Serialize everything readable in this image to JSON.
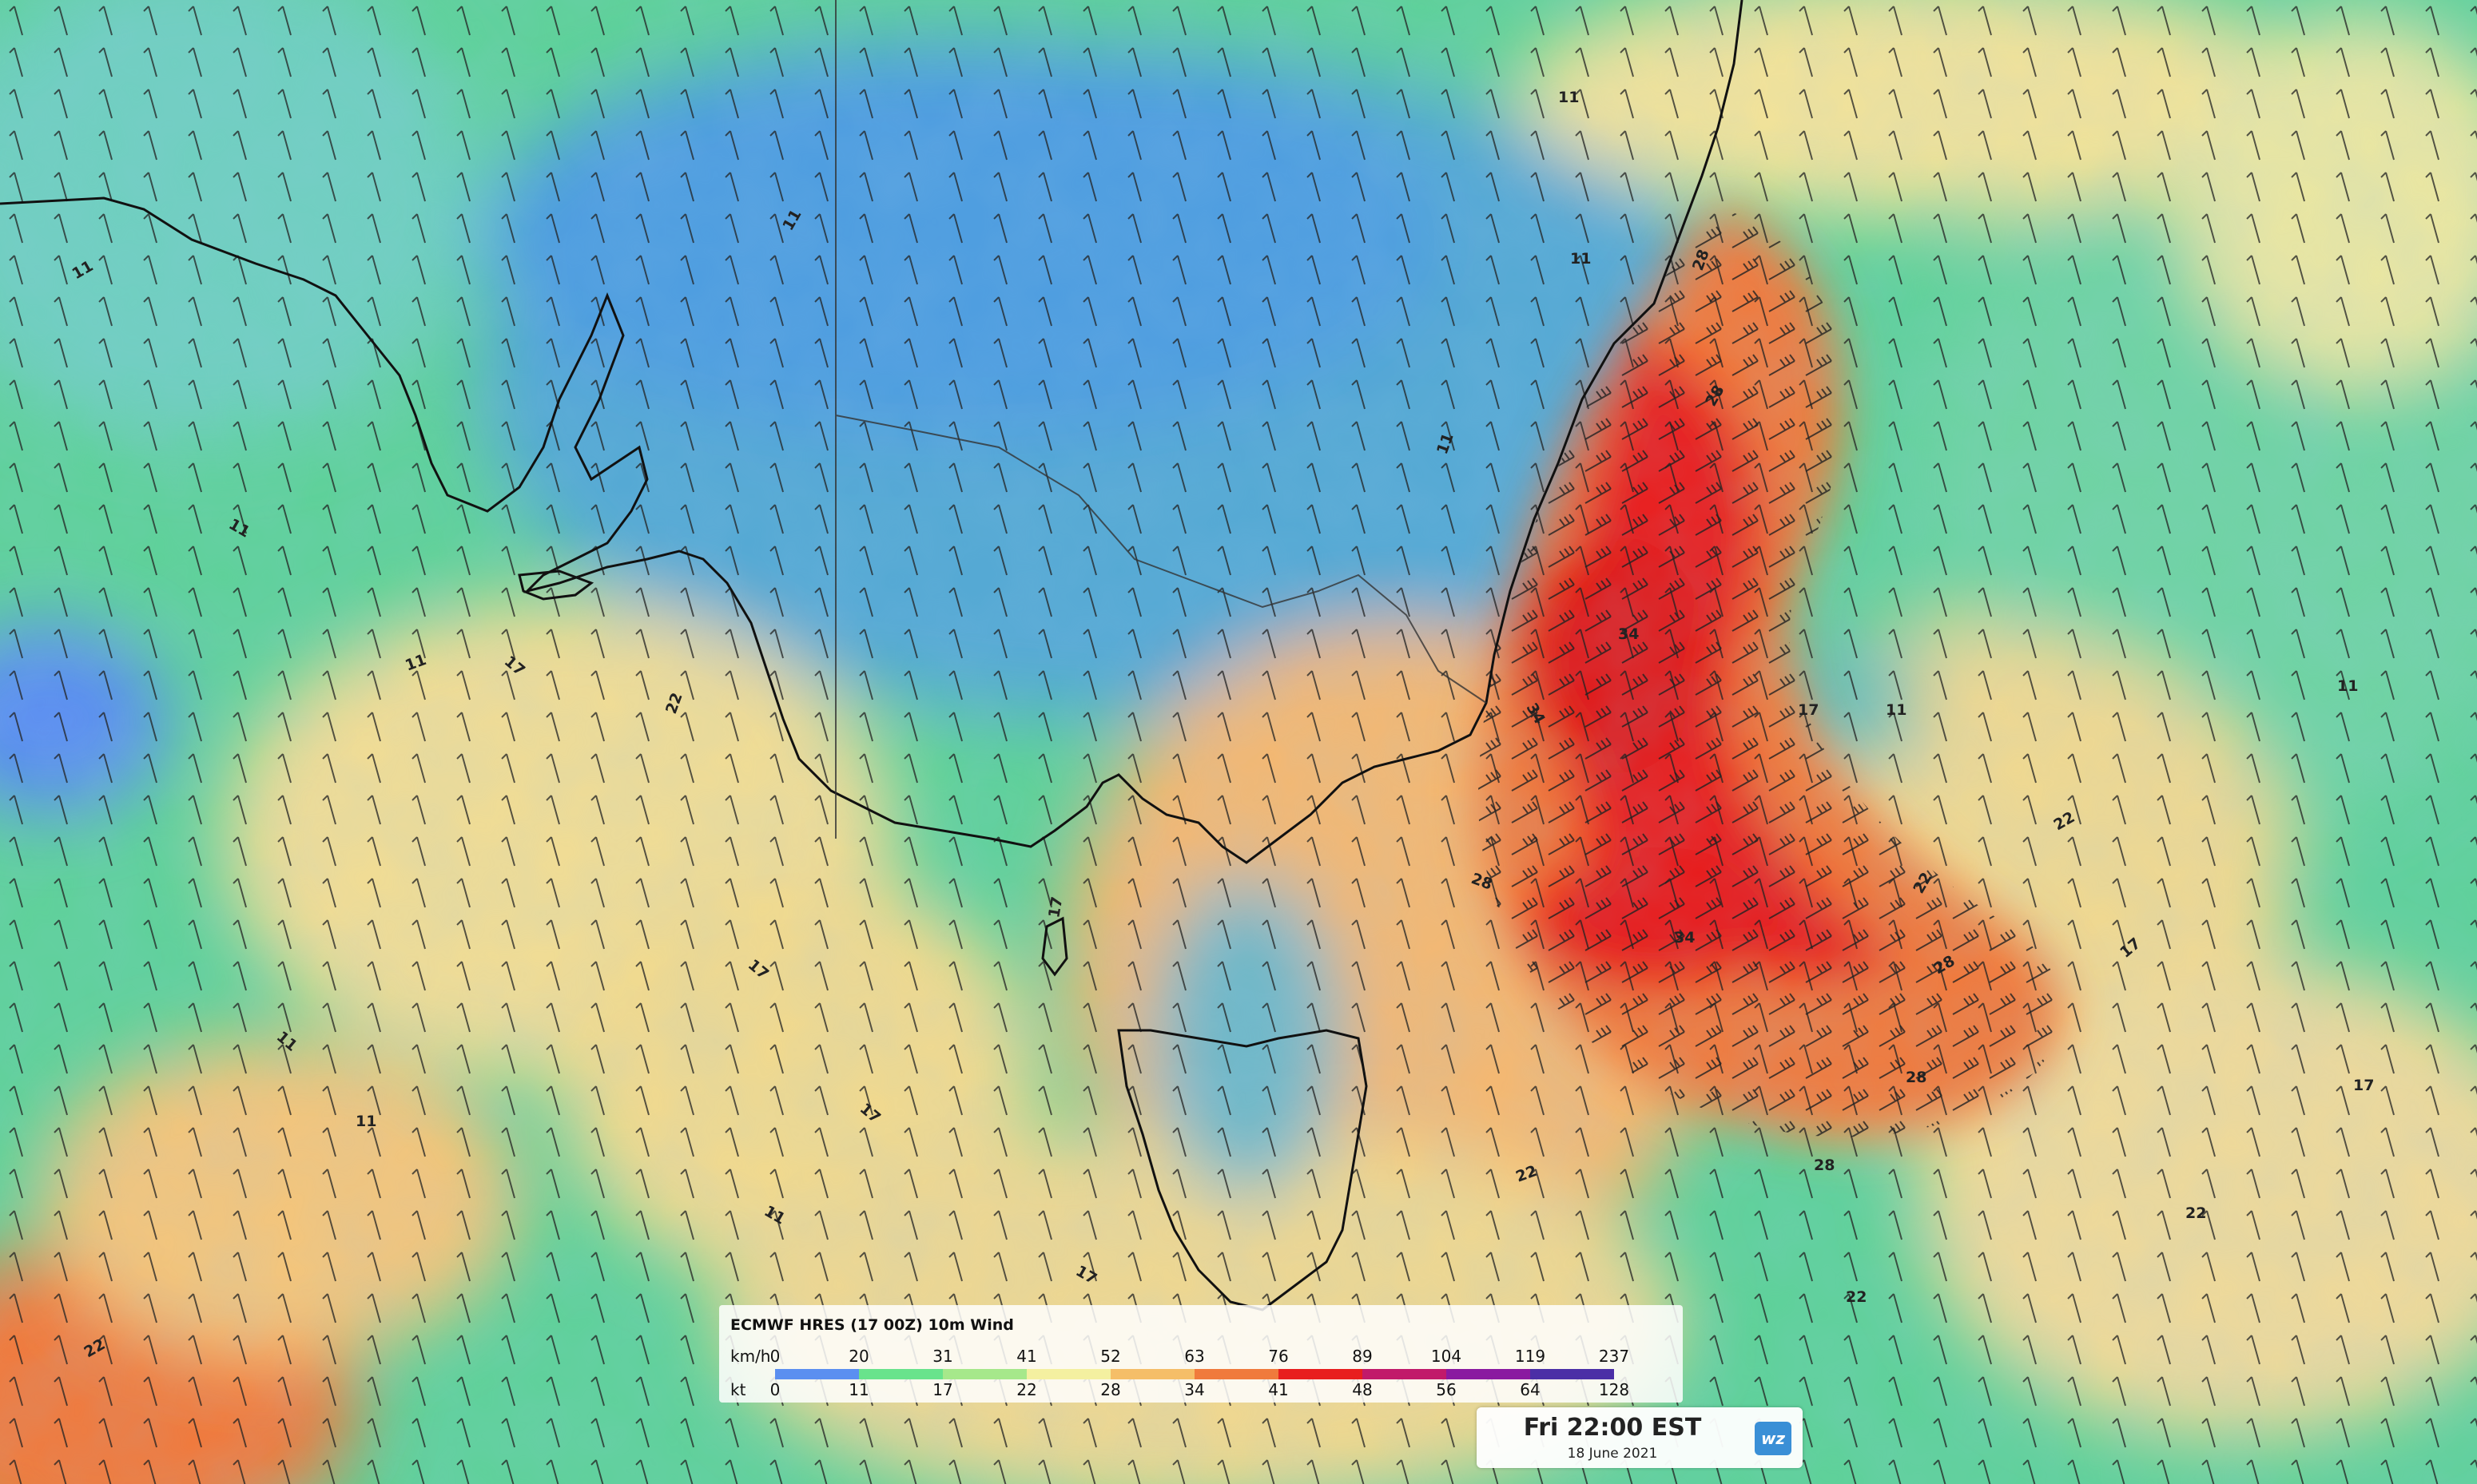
{
  "map": {
    "contour_labels": [
      {
        "text": "11",
        "pos": "west-upper-coast"
      },
      {
        "text": "11",
        "pos": "west-mid"
      },
      {
        "text": "11",
        "pos": "west-lower"
      },
      {
        "text": "11",
        "pos": "southwest-1"
      },
      {
        "text": "11",
        "pos": "southwest-2"
      },
      {
        "text": "11",
        "pos": "south-center"
      },
      {
        "text": "11",
        "pos": "inland-north"
      },
      {
        "text": "11",
        "pos": "inland-mid"
      },
      {
        "text": "11",
        "pos": "coast-east-1"
      },
      {
        "text": "11",
        "pos": "coast-east-2"
      },
      {
        "text": "11",
        "pos": "low-center"
      },
      {
        "text": "11",
        "pos": "far-east"
      },
      {
        "text": "17",
        "pos": "west-band-1"
      },
      {
        "text": "17",
        "pos": "west-band-2"
      },
      {
        "text": "17",
        "pos": "south-band"
      },
      {
        "text": "17",
        "pos": "bass-strait"
      },
      {
        "text": "17",
        "pos": "south-of-tas"
      },
      {
        "text": "17",
        "pos": "low-west"
      },
      {
        "text": "17",
        "pos": "low-east"
      },
      {
        "text": "17",
        "pos": "east-edge"
      },
      {
        "text": "22",
        "pos": "gulf"
      },
      {
        "text": "22",
        "pos": "low-ring-1"
      },
      {
        "text": "22",
        "pos": "low-ring-2"
      },
      {
        "text": "22",
        "pos": "south-east-1"
      },
      {
        "text": "22",
        "pos": "south-east-2"
      },
      {
        "text": "22",
        "pos": "bottom-right"
      },
      {
        "text": "22",
        "pos": "far-southwest"
      },
      {
        "text": "28",
        "pos": "coast-nsw-1"
      },
      {
        "text": "28",
        "pos": "coast-nsw-2"
      },
      {
        "text": "28",
        "pos": "tasman-1"
      },
      {
        "text": "28",
        "pos": "tasman-2"
      },
      {
        "text": "28",
        "pos": "tasman-3"
      },
      {
        "text": "28",
        "pos": "tasman-4"
      },
      {
        "text": "34",
        "pos": "core-1"
      },
      {
        "text": "34",
        "pos": "core-2"
      },
      {
        "text": "34",
        "pos": "core-3"
      }
    ]
  },
  "legend": {
    "title": "ECMWF HRES (17 00Z) 10m Wind",
    "unit_kmh": "km/h",
    "unit_kt": "kt",
    "kmh_ticks": [
      "0",
      "20",
      "31",
      "41",
      "52",
      "63",
      "76",
      "89",
      "104",
      "119",
      "237"
    ],
    "kt_ticks": [
      "0",
      "11",
      "17",
      "22",
      "28",
      "34",
      "41",
      "48",
      "56",
      "64",
      "128"
    ],
    "colors": [
      "#5b8ff0",
      "#69e38c",
      "#a6e88b",
      "#f4f0a0",
      "#f5be68",
      "#f07a3c",
      "#e81e1e",
      "#c11a6a",
      "#8a1aa0",
      "#4b2fa6"
    ]
  },
  "timestamp": {
    "time": "Fri 22:00 EST",
    "date": "18 June 2021",
    "logo": "wz"
  }
}
